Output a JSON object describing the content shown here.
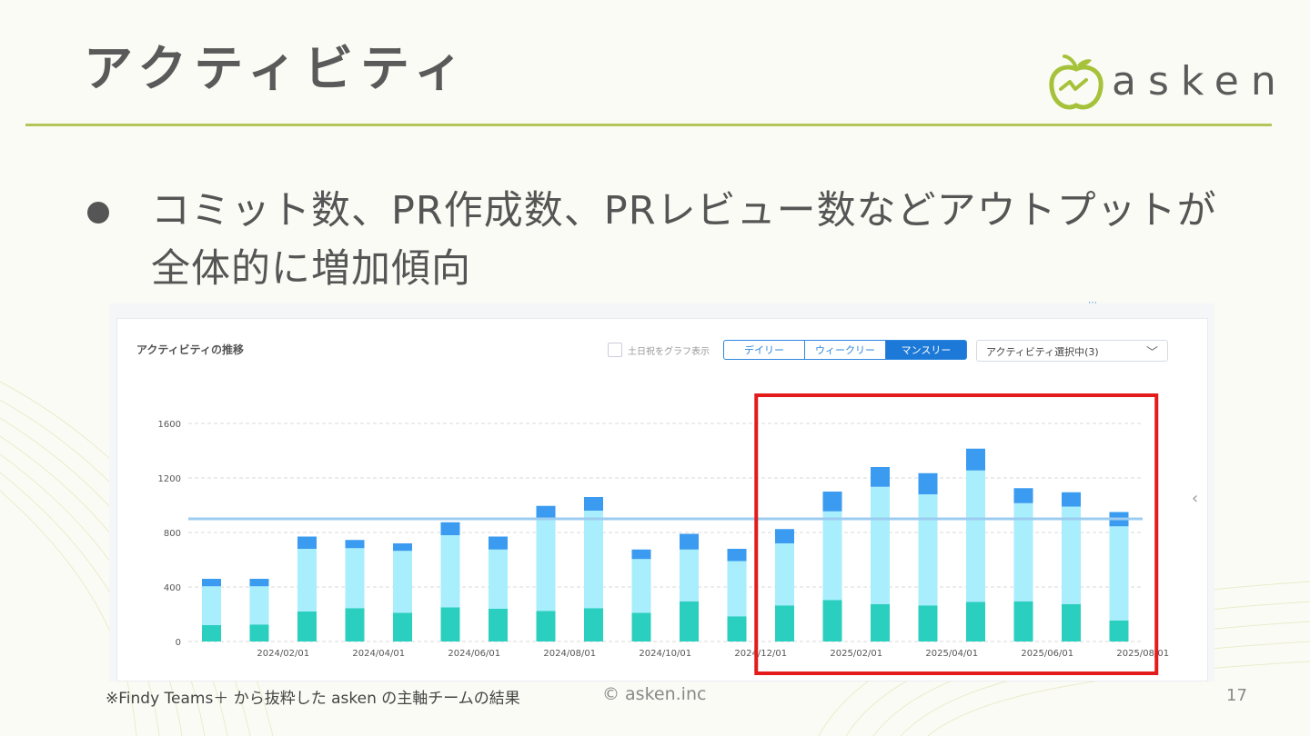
{
  "slide": {
    "title": "アクティビティ",
    "logo_text": "asken",
    "bullet": "コミット数、PR作成数、PRレビュー数などアウトプットが全体的に増加傾向",
    "footnote": "※Findy Teams＋ から抜粋した asken の主軸チームの結果",
    "copyright": "© asken.inc",
    "page_number": "17",
    "accent_color": "#b2c65a",
    "highlight_color": "#e31b1b"
  },
  "panel": {
    "title": "アクティビティの推移",
    "weekend_checkbox_label": "土日祝をグラフ表示",
    "tabs": [
      "デイリー",
      "ウィークリー",
      "マンスリー"
    ],
    "active_tab": "マンスリー",
    "activity_select": "アクティビティ選択中(3)"
  },
  "chart_data": {
    "type": "bar",
    "stacked": true,
    "y_ticks": [
      0,
      400,
      800,
      1200,
      1600
    ],
    "ylim": [
      0,
      1600
    ],
    "categories": [
      "2024/01/01",
      "2024/02/01",
      "2024/03/01",
      "2024/04/01",
      "2024/05/01",
      "2024/06/01",
      "2024/07/01",
      "2024/08/01",
      "2024/09/01",
      "2024/10/01",
      "2024/11/01",
      "2024/12/01",
      "2025/01/01",
      "2025/02/01",
      "2025/03/01",
      "2025/04/01",
      "2025/05/01",
      "2025/06/01",
      "2025/07/01",
      "2025/08/01"
    ],
    "x_tick_labels": [
      "2024/02/01",
      "2024/04/01",
      "2024/06/01",
      "2024/08/01",
      "2024/10/01",
      "2024/12/01",
      "2025/02/01",
      "2025/04/01",
      "2025/06/01",
      "2025/08/01"
    ],
    "series": [
      {
        "color": "#2bcfc0",
        "values": [
          120,
          125,
          220,
          245,
          210,
          250,
          240,
          225,
          245,
          210,
          295,
          185,
          265,
          305,
          275,
          265,
          290,
          295,
          275,
          155
        ]
      },
      {
        "color": "#a8eefc",
        "values": [
          285,
          280,
          460,
          440,
          455,
          530,
          435,
          670,
          715,
          395,
          380,
          405,
          455,
          650,
          860,
          815,
          965,
          720,
          715,
          690
        ]
      },
      {
        "color": "#3a9bf0",
        "values": [
          55,
          55,
          90,
          60,
          55,
          95,
          95,
          100,
          100,
          70,
          115,
          90,
          105,
          145,
          145,
          155,
          160,
          110,
          105,
          105
        ]
      }
    ],
    "reference_line": 900,
    "reference_line_color": "#9ccdf0",
    "highlight_range": [
      "2025/01/01",
      "2025/08/01"
    ],
    "grid": true
  }
}
